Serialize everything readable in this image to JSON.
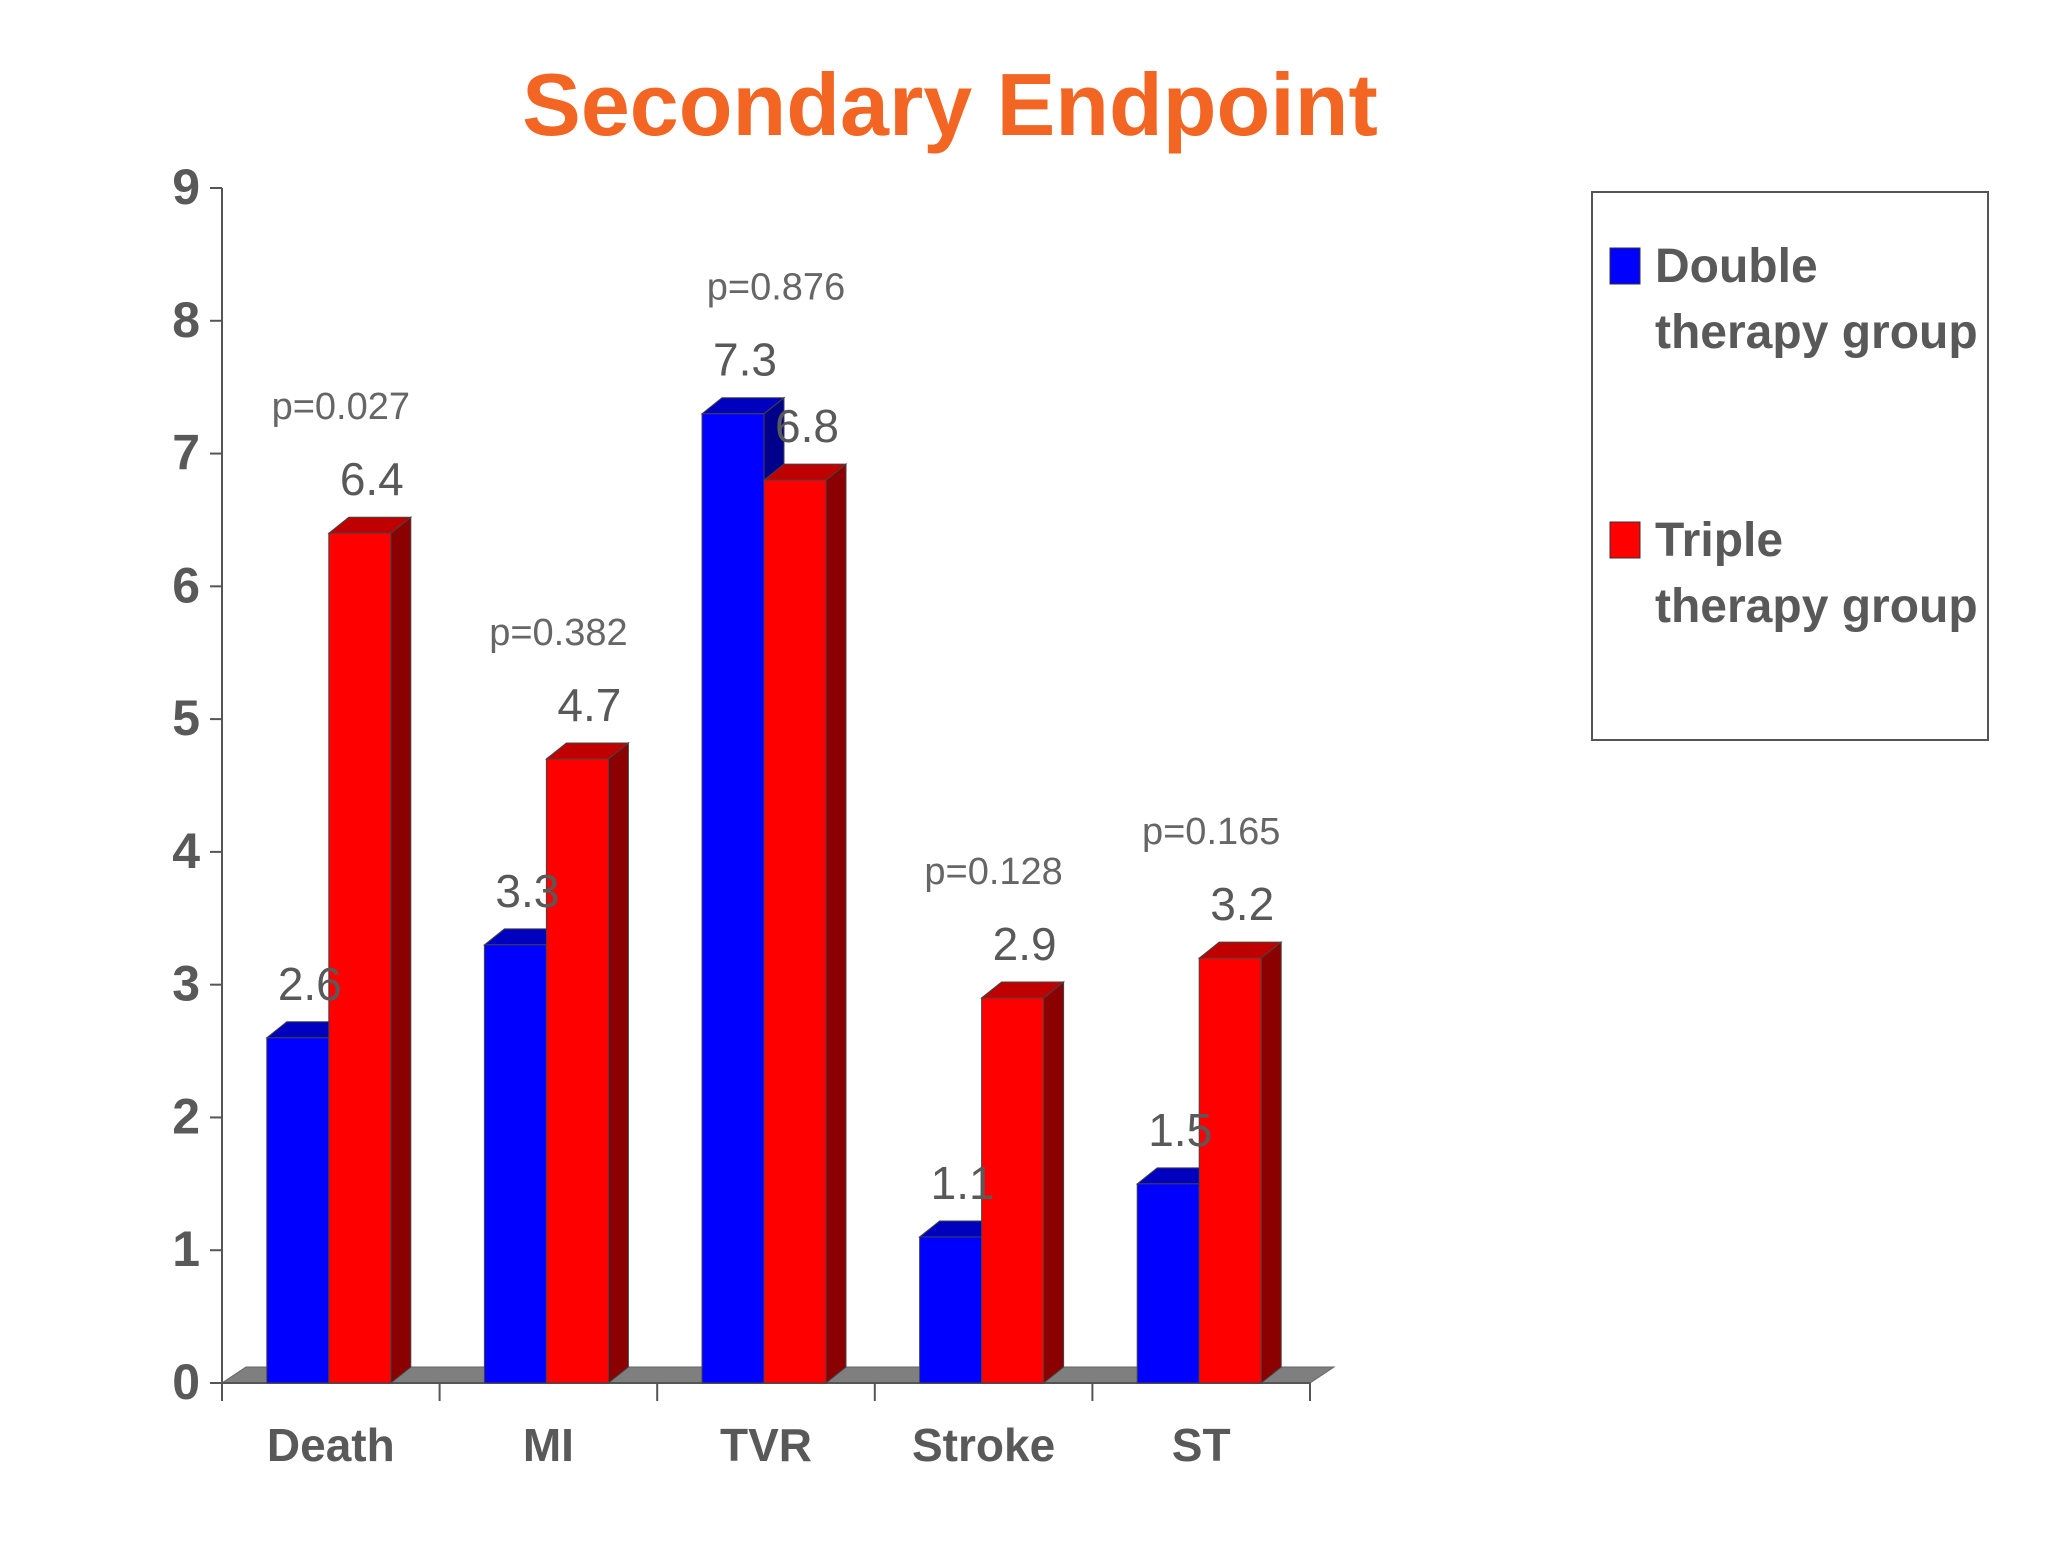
{
  "chart_data": {
    "type": "bar",
    "title": "Secondary Endpoint",
    "xlabel": "",
    "ylabel": "",
    "ylim": [
      0,
      9
    ],
    "yticks": [
      0,
      1,
      2,
      3,
      4,
      5,
      6,
      7,
      8,
      9
    ],
    "categories": [
      "Death",
      "MI",
      "TVR",
      "Stroke",
      "ST"
    ],
    "series": [
      {
        "name": "Double therapy group",
        "values": [
          2.6,
          3.3,
          7.3,
          1.1,
          1.5
        ],
        "color": "#0000ff"
      },
      {
        "name": "Triple therapy group",
        "values": [
          6.4,
          4.7,
          6.8,
          2.9,
          3.2
        ],
        "color": "#ff0000"
      }
    ],
    "annotations": [
      "p=0.027",
      "p=0.382",
      "p=0.876",
      "p=0.128",
      "p=0.165"
    ],
    "legend_position": "right",
    "grid": false,
    "bar_style": "3d",
    "colors": {
      "title": "#f26522",
      "axis_text": "#595959",
      "annotation_text": "#666666",
      "floor": "#7f7f7f",
      "double_side": "#00008b",
      "triple_side": "#8b0000"
    }
  }
}
